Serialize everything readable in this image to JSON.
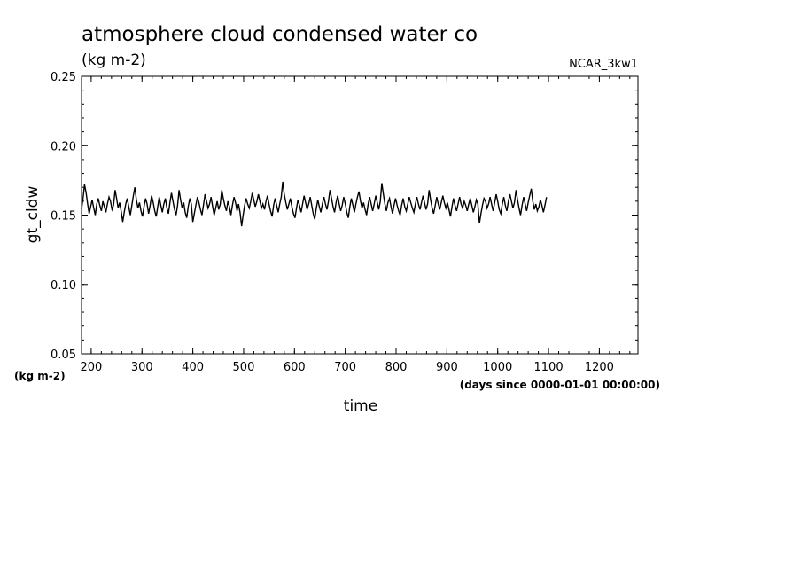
{
  "header": {
    "title": "atmosphere cloud condensed water co",
    "units": "(kg m-2)",
    "run_name": "NCAR_3kw1"
  },
  "axes": {
    "y_unit_label": "(kg m-2)",
    "x_unit_label": "(days since 0000-01-01 00:00:00)"
  },
  "chart_data": {
    "type": "line",
    "title": "atmosphere cloud condensed water co",
    "xlabel": "time",
    "ylabel": "gt_cldw",
    "xlim": [
      181,
      1276
    ],
    "ylim": [
      0.05,
      0.25
    ],
    "x_ticks": [
      200,
      300,
      400,
      500,
      600,
      700,
      800,
      900,
      1000,
      1100,
      1200
    ],
    "y_ticks": [
      0.05,
      0.1,
      0.15,
      0.2,
      0.25
    ],
    "y_tick_labels": [
      "0.05",
      "0.10",
      "0.15",
      "0.20",
      "0.25"
    ],
    "x_tick_labels": [
      "200",
      "300",
      "400",
      "500",
      "600",
      "700",
      "800",
      "900",
      "1000",
      "1100",
      "1200"
    ],
    "grid": false,
    "series": [
      {
        "x_start": 181,
        "x_step": 3,
        "values": [
          0.154,
          0.162,
          0.172,
          0.166,
          0.158,
          0.151,
          0.156,
          0.161,
          0.155,
          0.15,
          0.158,
          0.162,
          0.157,
          0.153,
          0.16,
          0.156,
          0.152,
          0.158,
          0.163,
          0.16,
          0.154,
          0.157,
          0.168,
          0.162,
          0.155,
          0.159,
          0.153,
          0.145,
          0.152,
          0.158,
          0.162,
          0.156,
          0.15,
          0.157,
          0.164,
          0.17,
          0.161,
          0.155,
          0.159,
          0.153,
          0.149,
          0.156,
          0.162,
          0.158,
          0.151,
          0.157,
          0.164,
          0.159,
          0.153,
          0.149,
          0.156,
          0.163,
          0.157,
          0.152,
          0.158,
          0.162,
          0.155,
          0.151,
          0.159,
          0.166,
          0.16,
          0.154,
          0.15,
          0.157,
          0.168,
          0.161,
          0.155,
          0.159,
          0.152,
          0.148,
          0.156,
          0.162,
          0.158,
          0.145,
          0.151,
          0.157,
          0.163,
          0.159,
          0.154,
          0.15,
          0.157,
          0.165,
          0.16,
          0.155,
          0.158,
          0.163,
          0.156,
          0.15,
          0.155,
          0.16,
          0.154,
          0.158,
          0.168,
          0.162,
          0.157,
          0.153,
          0.16,
          0.156,
          0.15,
          0.157,
          0.163,
          0.159,
          0.153,
          0.158,
          0.152,
          0.142,
          0.15,
          0.157,
          0.162,
          0.158,
          0.155,
          0.16,
          0.166,
          0.161,
          0.156,
          0.16,
          0.165,
          0.16,
          0.155,
          0.158,
          0.154,
          0.16,
          0.164,
          0.158,
          0.153,
          0.149,
          0.157,
          0.162,
          0.157,
          0.152,
          0.158,
          0.163,
          0.174,
          0.165,
          0.159,
          0.154,
          0.158,
          0.162,
          0.156,
          0.151,
          0.148,
          0.155,
          0.161,
          0.157,
          0.152,
          0.158,
          0.164,
          0.159,
          0.154,
          0.158,
          0.163,
          0.157,
          0.151,
          0.147,
          0.155,
          0.161,
          0.156,
          0.152,
          0.158,
          0.163,
          0.158,
          0.154,
          0.16,
          0.168,
          0.162,
          0.156,
          0.152,
          0.159,
          0.164,
          0.158,
          0.153,
          0.157,
          0.163,
          0.158,
          0.152,
          0.148,
          0.156,
          0.162,
          0.157,
          0.152,
          0.158,
          0.163,
          0.167,
          0.16,
          0.155,
          0.159,
          0.154,
          0.15,
          0.158,
          0.163,
          0.158,
          0.153,
          0.158,
          0.164,
          0.159,
          0.154,
          0.16,
          0.173,
          0.165,
          0.158,
          0.153,
          0.159,
          0.162,
          0.156,
          0.151,
          0.157,
          0.162,
          0.157,
          0.153,
          0.15,
          0.157,
          0.162,
          0.156,
          0.153,
          0.158,
          0.163,
          0.159,
          0.155,
          0.152,
          0.158,
          0.163,
          0.158,
          0.154,
          0.159,
          0.164,
          0.159,
          0.154,
          0.158,
          0.168,
          0.161,
          0.155,
          0.151,
          0.157,
          0.163,
          0.158,
          0.154,
          0.159,
          0.164,
          0.159,
          0.155,
          0.159,
          0.154,
          0.149,
          0.156,
          0.162,
          0.157,
          0.153,
          0.158,
          0.163,
          0.158,
          0.155,
          0.16,
          0.157,
          0.153,
          0.158,
          0.162,
          0.157,
          0.152,
          0.156,
          0.161,
          0.158,
          0.144,
          0.151,
          0.157,
          0.162,
          0.16,
          0.155,
          0.158,
          0.163,
          0.158,
          0.153,
          0.159,
          0.165,
          0.16,
          0.154,
          0.151,
          0.158,
          0.163,
          0.157,
          0.153,
          0.16,
          0.165,
          0.16,
          0.155,
          0.159,
          0.168,
          0.161,
          0.155,
          0.15,
          0.157,
          0.163,
          0.158,
          0.153,
          0.159,
          0.164,
          0.169,
          0.16,
          0.154,
          0.158,
          0.153,
          0.156,
          0.161,
          0.157,
          0.152,
          0.157,
          0.163
        ]
      }
    ]
  }
}
